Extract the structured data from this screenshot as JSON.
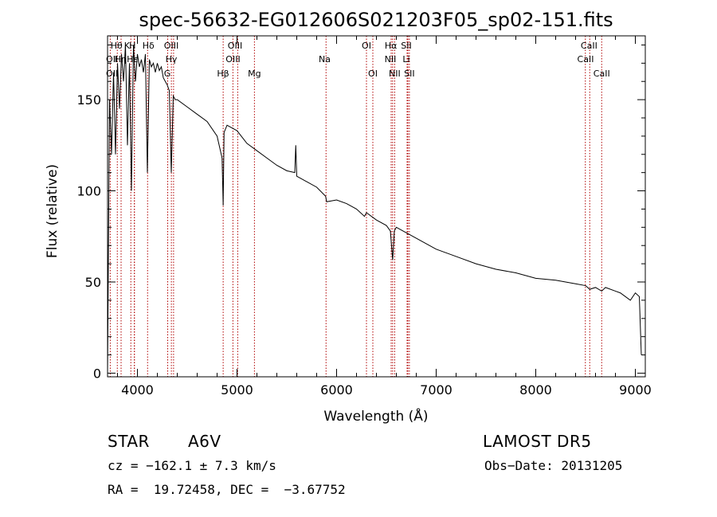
{
  "chart_data": {
    "type": "line",
    "title": "spec-56632-EG012606S021203F05_sp02-151.fits",
    "xlabel": "Wavelength (Å)",
    "ylabel": "Flux (relative)",
    "xlim": [
      3700,
      9100
    ],
    "ylim": [
      -2,
      185
    ],
    "x_ticks": [
      4000,
      5000,
      6000,
      7000,
      8000,
      9000
    ],
    "y_ticks": [
      0,
      50,
      100,
      150
    ],
    "grid": false,
    "legend": "none",
    "line_color": "#000000",
    "marker_color": "#b00000",
    "series": [
      {
        "x": [
          3700,
          3720,
          3740,
          3760,
          3780,
          3800,
          3820,
          3840,
          3860,
          3880,
          3900,
          3920,
          3940,
          3960,
          3980,
          4000,
          4020,
          4040,
          4060,
          4080,
          4100,
          4120,
          4140,
          4160,
          4180,
          4200,
          4220,
          4240,
          4260,
          4280,
          4300,
          4320,
          4340,
          4360,
          4380,
          4400,
          4500,
          4600,
          4700,
          4800,
          4850,
          4861,
          4870,
          4900,
          5000,
          5100,
          5200,
          5300,
          5400,
          5500,
          5580,
          5590,
          5600,
          5700,
          5800,
          5890,
          5900,
          6000,
          6100,
          6200,
          6280,
          6300,
          6400,
          6500,
          6540,
          6563,
          6580,
          6600,
          6700,
          6800,
          6900,
          7000,
          7200,
          7400,
          7600,
          7800,
          8000,
          8200,
          8400,
          8500,
          8542,
          8600,
          8662,
          8700,
          8800,
          8850,
          8900,
          8950,
          9000,
          9040,
          9060
        ],
        "y": [
          0,
          150,
          120,
          165,
          120,
          170,
          145,
          175,
          160,
          180,
          125,
          170,
          100,
          180,
          160,
          175,
          168,
          172,
          165,
          175,
          110,
          172,
          168,
          170,
          165,
          170,
          166,
          168,
          162,
          160,
          158,
          155,
          110,
          152,
          150,
          150,
          146,
          142,
          138,
          130,
          118,
          92,
          132,
          136,
          133,
          126,
          122,
          118,
          114,
          111,
          110,
          125,
          108,
          105,
          102,
          97,
          94,
          95,
          93,
          90,
          86,
          88,
          84,
          81,
          78,
          62,
          78,
          80,
          77,
          74,
          71,
          68,
          64,
          60,
          57,
          55,
          52,
          51,
          49,
          48,
          46,
          47,
          45,
          47,
          45,
          44,
          42,
          40,
          44,
          42,
          10
        ]
      }
    ],
    "lines": [
      {
        "name": "OII",
        "wl": 3727
      },
      {
        "name": "Hθ",
        "wl": 3798
      },
      {
        "name": "Hη",
        "wl": 3836
      },
      {
        "name": "K",
        "wl": 3934
      },
      {
        "name": "H",
        "wl": 3969
      },
      {
        "name": "Hε",
        "wl": 3970
      },
      {
        "name": "Hδ",
        "wl": 4102
      },
      {
        "name": "G",
        "wl": 4304
      },
      {
        "name": "Hγ",
        "wl": 4341
      },
      {
        "name": "OIII",
        "wl": 4363
      },
      {
        "name": "Hβ",
        "wl": 4861
      },
      {
        "name": "OIII",
        "wl": 4959
      },
      {
        "name": "OIII",
        "wl": 5007
      },
      {
        "name": "Mg",
        "wl": 5175
      },
      {
        "name": "Na",
        "wl": 5894
      },
      {
        "name": "OI",
        "wl": 6300
      },
      {
        "name": "OI",
        "wl": 6364
      },
      {
        "name": "NII",
        "wl": 6548
      },
      {
        "name": "Hα",
        "wl": 6563
      },
      {
        "name": "NII",
        "wl": 6583
      },
      {
        "name": "Li",
        "wl": 6708
      },
      {
        "name": "SII",
        "wl": 6716
      },
      {
        "name": "SII",
        "wl": 6731
      },
      {
        "name": "CaII",
        "wl": 8498
      },
      {
        "name": "CaII",
        "wl": 8542
      },
      {
        "name": "CaII",
        "wl": 8662
      }
    ],
    "line_labels": [
      {
        "text": "Hθ",
        "wl": 3790,
        "row": 0
      },
      {
        "text": "H",
        "wl": 3950,
        "row": 0
      },
      {
        "text": "K",
        "wl": 3895,
        "row": 0
      },
      {
        "text": "Hδ",
        "wl": 4110,
        "row": 0
      },
      {
        "text": "OIII",
        "wl": 4340,
        "row": 0
      },
      {
        "text": "OIII",
        "wl": 4980,
        "row": 0
      },
      {
        "text": "OI",
        "wl": 6300,
        "row": 0
      },
      {
        "text": "Hα",
        "wl": 6545,
        "row": 0
      },
      {
        "text": "SII",
        "wl": 6700,
        "row": 0
      },
      {
        "text": "CaII",
        "wl": 8535,
        "row": 0
      },
      {
        "text": "OII",
        "wl": 3745,
        "row": 1
      },
      {
        "text": "Hη",
        "wl": 3830,
        "row": 1
      },
      {
        "text": "Hε",
        "wl": 3950,
        "row": 1
      },
      {
        "text": "Hγ",
        "wl": 4340,
        "row": 1
      },
      {
        "text": "OIII",
        "wl": 4960,
        "row": 1
      },
      {
        "text": "Na",
        "wl": 5880,
        "row": 1
      },
      {
        "text": "NII",
        "wl": 6540,
        "row": 1
      },
      {
        "text": "Li",
        "wl": 6700,
        "row": 1
      },
      {
        "text": "CaII",
        "wl": 8500,
        "row": 1
      },
      {
        "text": "OII",
        "wl": 3745,
        "row": 2
      },
      {
        "text": "G",
        "wl": 4300,
        "row": 2
      },
      {
        "text": "Hβ",
        "wl": 4860,
        "row": 2
      },
      {
        "text": "Mg",
        "wl": 5175,
        "row": 2
      },
      {
        "text": "OI",
        "wl": 6364,
        "row": 2
      },
      {
        "text": "NII",
        "wl": 6583,
        "row": 2
      },
      {
        "text": "SII",
        "wl": 6731,
        "row": 2
      },
      {
        "text": "CaII",
        "wl": 8662,
        "row": 2
      }
    ]
  },
  "info": {
    "class_label": "STAR",
    "subclass": "A6V",
    "survey": "LAMOST DR5",
    "cz": "cz = −162.1 ± 7.3 km/s",
    "obs_date": "Obs−Date: 20131205",
    "radec": "RA =  19.72458, DEC =  −3.67752"
  }
}
